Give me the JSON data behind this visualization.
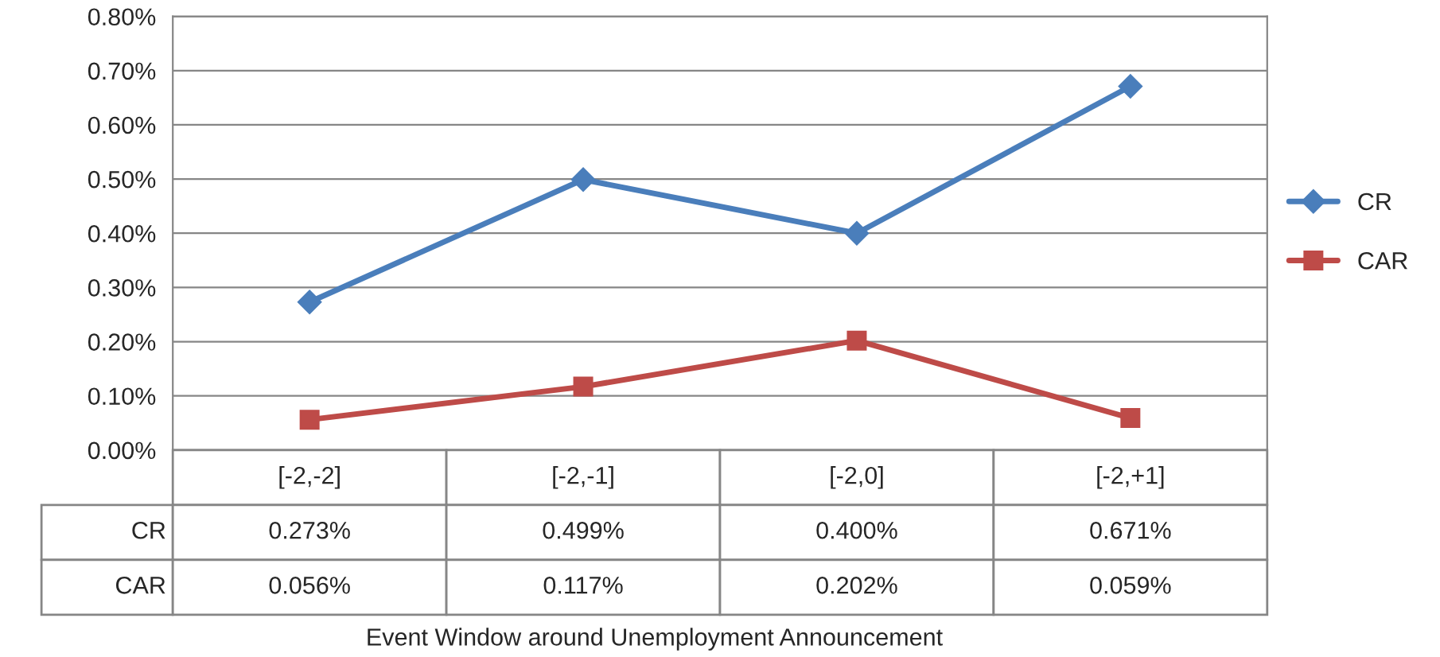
{
  "chart_data": {
    "type": "line",
    "annotations": [
      "Event Window around Unemployment Announcement"
    ],
    "categories": [
      "[-2,-2]",
      "[-2,-1]",
      "[-2,0]",
      "[-2,+1]"
    ],
    "series": [
      {
        "name": "CR",
        "color": "#4a7ebb",
        "marker": "diamond",
        "values": [
          0.273,
          0.499,
          0.4,
          0.671
        ],
        "value_labels": [
          "0.273%",
          "0.499%",
          "0.400%",
          "0.671%"
        ]
      },
      {
        "name": "CAR",
        "color": "#be4b48",
        "marker": "square",
        "values": [
          0.056,
          0.117,
          0.202,
          0.059
        ],
        "value_labels": [
          "0.056%",
          "0.117%",
          "0.202%",
          "0.059%"
        ]
      }
    ],
    "ylim": [
      0,
      0.8
    ],
    "yticks": [
      {
        "value": 0,
        "label": "0.00%"
      },
      {
        "value": 0.1,
        "label": "0.10%"
      },
      {
        "value": 0.2,
        "label": "0.20%"
      },
      {
        "value": 0.3,
        "label": "0.30%"
      },
      {
        "value": 0.4,
        "label": "0.40%"
      },
      {
        "value": 0.5,
        "label": "0.50%"
      },
      {
        "value": 0.6,
        "label": "0.60%"
      },
      {
        "value": 0.7,
        "label": "0.70%"
      },
      {
        "value": 0.8,
        "label": "0.80%"
      }
    ],
    "grid": "y",
    "legend": "right",
    "line_style": "solid"
  }
}
